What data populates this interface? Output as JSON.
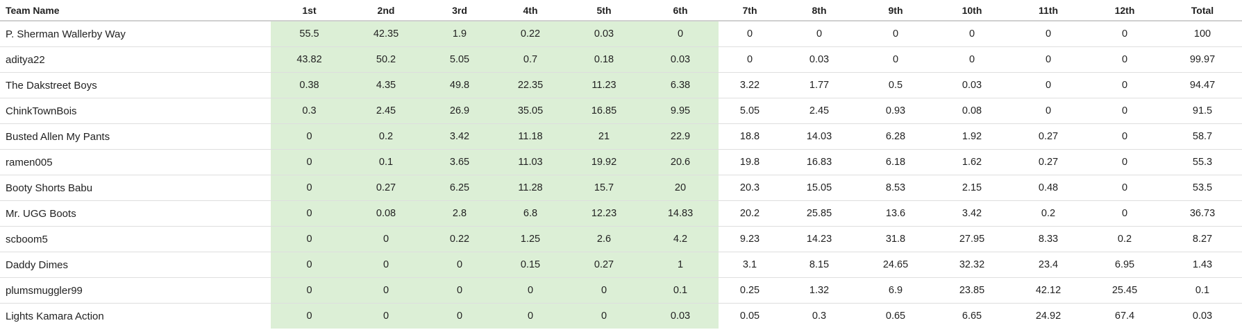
{
  "table": {
    "headers": [
      "Team Name",
      "1st",
      "2nd",
      "3rd",
      "4th",
      "5th",
      "6th",
      "7th",
      "8th",
      "9th",
      "10th",
      "11th",
      "12th",
      "Total"
    ],
    "playoff_highlight_color": "#dcefd6",
    "rows": [
      {
        "team": "P. Sherman Wallerby Way",
        "cells": [
          "55.5",
          "42.35",
          "1.9",
          "0.22",
          "0.03",
          "0",
          "0",
          "0",
          "0",
          "0",
          "0",
          "0"
        ],
        "total": "100"
      },
      {
        "team": "aditya22",
        "cells": [
          "43.82",
          "50.2",
          "5.05",
          "0.7",
          "0.18",
          "0.03",
          "0",
          "0.03",
          "0",
          "0",
          "0",
          "0"
        ],
        "total": "99.97"
      },
      {
        "team": "The Dakstreet Boys",
        "cells": [
          "0.38",
          "4.35",
          "49.8",
          "22.35",
          "11.23",
          "6.38",
          "3.22",
          "1.77",
          "0.5",
          "0.03",
          "0",
          "0"
        ],
        "total": "94.47"
      },
      {
        "team": "ChinkTownBois",
        "cells": [
          "0.3",
          "2.45",
          "26.9",
          "35.05",
          "16.85",
          "9.95",
          "5.05",
          "2.45",
          "0.93",
          "0.08",
          "0",
          "0"
        ],
        "total": "91.5"
      },
      {
        "team": "Busted Allen My Pants",
        "cells": [
          "0",
          "0.2",
          "3.42",
          "11.18",
          "21",
          "22.9",
          "18.8",
          "14.03",
          "6.28",
          "1.92",
          "0.27",
          "0"
        ],
        "total": "58.7"
      },
      {
        "team": "ramen005",
        "cells": [
          "0",
          "0.1",
          "3.65",
          "11.03",
          "19.92",
          "20.6",
          "19.8",
          "16.83",
          "6.18",
          "1.62",
          "0.27",
          "0"
        ],
        "total": "55.3"
      },
      {
        "team": "Booty Shorts Babu",
        "cells": [
          "0",
          "0.27",
          "6.25",
          "11.28",
          "15.7",
          "20",
          "20.3",
          "15.05",
          "8.53",
          "2.15",
          "0.48",
          "0"
        ],
        "total": "53.5"
      },
      {
        "team": "Mr. UGG Boots",
        "cells": [
          "0",
          "0.08",
          "2.8",
          "6.8",
          "12.23",
          "14.83",
          "20.2",
          "25.85",
          "13.6",
          "3.42",
          "0.2",
          "0"
        ],
        "total": "36.73"
      },
      {
        "team": "scboom5",
        "cells": [
          "0",
          "0",
          "0.22",
          "1.25",
          "2.6",
          "4.2",
          "9.23",
          "14.23",
          "31.8",
          "27.95",
          "8.33",
          "0.2"
        ],
        "total": "8.27"
      },
      {
        "team": "Daddy Dimes",
        "cells": [
          "0",
          "0",
          "0",
          "0.15",
          "0.27",
          "1",
          "3.1",
          "8.15",
          "24.65",
          "32.32",
          "23.4",
          "6.95"
        ],
        "total": "1.43"
      },
      {
        "team": "plumsmuggler99",
        "cells": [
          "0",
          "0",
          "0",
          "0",
          "0",
          "0.1",
          "0.25",
          "1.32",
          "6.9",
          "23.85",
          "42.12",
          "25.45"
        ],
        "total": "0.1"
      },
      {
        "team": "Lights Kamara Action",
        "cells": [
          "0",
          "0",
          "0",
          "0",
          "0",
          "0.03",
          "0.05",
          "0.3",
          "0.65",
          "6.65",
          "24.92",
          "67.4"
        ],
        "total": "0.03"
      }
    ]
  }
}
